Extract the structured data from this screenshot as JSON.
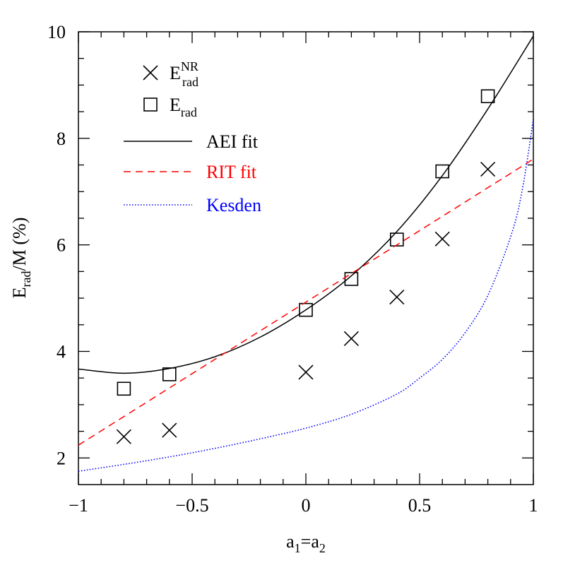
{
  "chart_data": {
    "type": "line",
    "x_label": {
      "main": "a",
      "sub1": "1",
      "mid": "=a",
      "sub2": "2"
    },
    "y_label": {
      "main": "E",
      "sub": "rad",
      "rest": "/M (%)"
    },
    "xlim": [
      -1,
      1
    ],
    "ylim": [
      1.5,
      10
    ],
    "xticks": [
      {
        "value": -1,
        "label": "−1"
      },
      {
        "value": -0.5,
        "label": "−0.5"
      },
      0,
      0.5,
      1
    ],
    "yticks": [
      2,
      4,
      6,
      8,
      10
    ],
    "xminorticks": [
      -0.9,
      -0.8,
      -0.7,
      -0.6,
      -0.4,
      -0.3,
      -0.2,
      -0.1,
      0.1,
      0.2,
      0.3,
      0.4,
      0.6,
      0.7,
      0.8,
      0.9
    ],
    "yminorticks": [
      2.5,
      3,
      3.5,
      4.5,
      5,
      5.5,
      6.5,
      7,
      7.5,
      8.5,
      9,
      9.5
    ],
    "series": [
      {
        "name": "E",
        "sup": "NR",
        "sub": "rad",
        "style": "cross",
        "color": "#000000",
        "x": [
          -0.8,
          -0.6,
          0,
          0.2,
          0.4,
          0.6,
          0.8
        ],
        "values": [
          2.4,
          2.52,
          3.61,
          4.24,
          5.02,
          6.11,
          7.42
        ]
      },
      {
        "name": "E",
        "sub": "rad",
        "style": "square",
        "color": "#000000",
        "x": [
          -0.8,
          -0.6,
          0,
          0.2,
          0.4,
          0.6,
          0.8
        ],
        "values": [
          3.3,
          3.57,
          4.78,
          5.36,
          6.1,
          7.38,
          8.79
        ]
      },
      {
        "name": "AEI fit",
        "style": "solid",
        "color": "#000000",
        "x": [
          -1,
          -0.8,
          -0.6,
          -0.4,
          -0.2,
          0,
          0.2,
          0.4,
          0.6,
          0.8,
          1
        ],
        "values": [
          3.67,
          3.59,
          3.68,
          3.9,
          4.27,
          4.78,
          5.42,
          6.25,
          7.3,
          8.55,
          9.92
        ]
      },
      {
        "name": "RIT fit",
        "style": "dashed",
        "color": "#ff0000",
        "x": [
          -1,
          1
        ],
        "values": [
          2.24,
          7.61
        ]
      },
      {
        "name": "Kesden",
        "style": "dotted",
        "color": "#0000ff",
        "x": [
          -1,
          -0.8,
          -0.6,
          -0.4,
          -0.2,
          0,
          0.2,
          0.4,
          0.5,
          0.6,
          0.7,
          0.8,
          0.9,
          0.95,
          1
        ],
        "values": [
          1.75,
          1.88,
          2.02,
          2.18,
          2.36,
          2.56,
          2.82,
          3.2,
          3.5,
          3.85,
          4.35,
          5.05,
          6.15,
          7.0,
          8.35
        ]
      }
    ]
  }
}
